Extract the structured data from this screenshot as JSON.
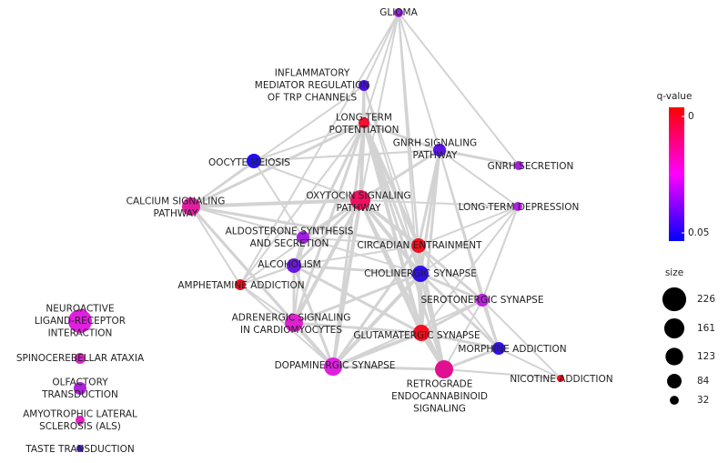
{
  "nodes": [
    {
      "label": [
        "GLIOMA"
      ],
      "color": "#9a1be0",
      "size": 33
    },
    {
      "label": [
        "INFLAMMATORY",
        "MEDIATOR REGULATION",
        "OF TRP CHANNELS"
      ],
      "color": "#4a10e8",
      "size": 48
    },
    {
      "label": [
        "LONG-TERM",
        "POTENTIATION"
      ],
      "color": "#f01030",
      "size": 48
    },
    {
      "label": [
        "GNRH SIGNALING",
        "PATHWAY"
      ],
      "color": "#5a14e8",
      "size": 65
    },
    {
      "label": [
        "GNRH SECRETION"
      ],
      "color": "#a820e0",
      "size": 33
    },
    {
      "label": [
        "OOCYTE MEIOSIS"
      ],
      "color": "#2010f0",
      "size": 85
    },
    {
      "label": [
        "CALCIUM SIGNALING",
        "PATHWAY"
      ],
      "color": "#e020a0",
      "size": 132
    },
    {
      "label": [
        "OXYTOCIN SIGNALING",
        "PATHWAY"
      ],
      "color": "#f01060",
      "size": 160
    },
    {
      "label": [
        "LONG-TERM DEPRESSION"
      ],
      "color": "#b020e0",
      "size": 33
    },
    {
      "label": [
        "ALDOSTERONE SYNTHESIS",
        "AND SECRETION"
      ],
      "color": "#a020e0",
      "size": 65
    },
    {
      "label": [
        "CIRCADIAN ENTRAINMENT"
      ],
      "color": "#f01020",
      "size": 85
    },
    {
      "label": [
        "ALCOHOLISM"
      ],
      "color": "#6a18e0",
      "size": 85
    },
    {
      "label": [
        "CHOLINERGIC SYNAPSE"
      ],
      "color": "#3010e8",
      "size": 107
    },
    {
      "label": [
        "AMPHETAMINE ADDICTION"
      ],
      "color": "#f01020",
      "size": 48
    },
    {
      "label": [
        "SEROTONERGIC SYNAPSE"
      ],
      "color": "#c020e0",
      "size": 65
    },
    {
      "label": [
        "NEUROACTIVE",
        "LIGAND-RECEPTOR",
        "INTERACTION"
      ],
      "color": "#e020e0",
      "size": 223
    },
    {
      "label": [
        "ADRENERGIC SIGNALING",
        "IN CARDIOMYOCYTES"
      ],
      "color": "#e020d0",
      "size": 132
    },
    {
      "label": [
        "GLUTAMATERGIC SYNAPSE"
      ],
      "color": "#f01020",
      "size": 107
    },
    {
      "label": [
        "MORPHINE ADDICTION"
      ],
      "color": "#3010e8",
      "size": 65
    },
    {
      "label": [
        "SPINOCEREBELLAR ATAXIA"
      ],
      "color": "#e020d0",
      "size": 48
    },
    {
      "label": [
        "DOPAMINERGIC SYNAPSE"
      ],
      "color": "#e020e0",
      "size": 132
    },
    {
      "label": [
        "RETROGRADE",
        "ENDOCANNABINOID",
        "SIGNALING"
      ],
      "color": "#e01090",
      "size": 132
    },
    {
      "label": [
        "NICOTINE ADDICTION"
      ],
      "color": "#f01020",
      "size": 21
    },
    {
      "label": [
        "OLFACTORY",
        "TRANSDUCTION"
      ],
      "color": "#b020e0",
      "size": 65
    },
    {
      "label": [
        "AMYOTROPHIC LATERAL",
        "SCLEROSIS (ALS)"
      ],
      "color": "#e020c0",
      "size": 33
    },
    {
      "label": [
        "TASTE TRANSDUCTION"
      ],
      "color": "#5014e8",
      "size": 21
    }
  ],
  "legend": {
    "color_title": "q-value",
    "color_ticks": [
      0,
      0.05
    ],
    "color_low": "#ff0000",
    "color_high": "#0000ff",
    "size_title": "size",
    "sizes": [
      226,
      161,
      123,
      84,
      32
    ]
  }
}
